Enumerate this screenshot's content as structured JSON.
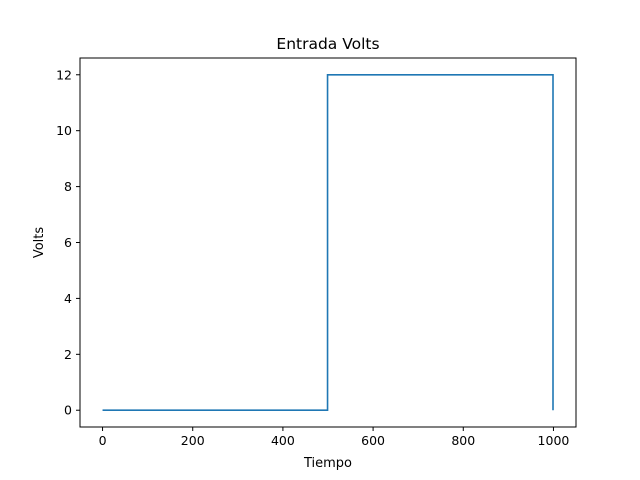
{
  "chart_data": {
    "type": "line",
    "title": "Entrada Volts",
    "xlabel": "Tiempo",
    "ylabel": "Volts",
    "xlim": [
      -50,
      1050
    ],
    "ylim": [
      -0.6,
      12.6
    ],
    "xticks": [
      0,
      200,
      400,
      600,
      800,
      1000
    ],
    "yticks": [
      0,
      2,
      4,
      6,
      8,
      10,
      12
    ],
    "grid": false,
    "series": [
      {
        "color": "#1f77b4",
        "x": [
          0,
          499,
          499,
          999,
          999
        ],
        "y": [
          0,
          0,
          12,
          12,
          0
        ]
      }
    ]
  }
}
